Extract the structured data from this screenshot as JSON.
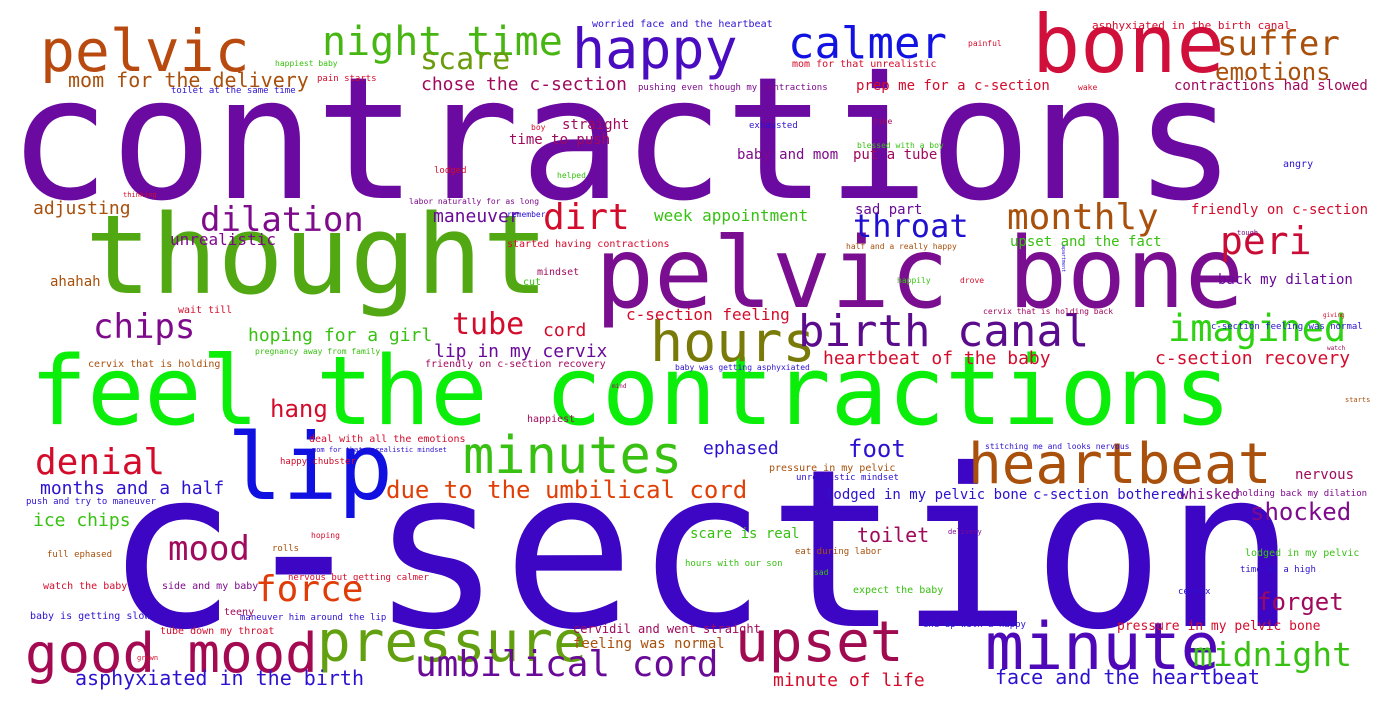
{
  "words": [
    {
      "text": "contractions",
      "color": "#6a0aa0"
    },
    {
      "text": "c-section",
      "color": "#3d06c4"
    },
    {
      "text": "feel the contractions",
      "color": "#0aee0a"
    },
    {
      "text": "thought",
      "color": "#52a812"
    },
    {
      "text": "pelvic bone",
      "color": "#7a0e90"
    },
    {
      "text": "bone",
      "color": "#d0103a"
    },
    {
      "text": "happy",
      "color": "#4a0cc0"
    },
    {
      "text": "pelvic",
      "color": "#b84a10"
    },
    {
      "text": "lip",
      "color": "#1010e0"
    },
    {
      "text": "heartbeat",
      "color": "#a8500c"
    },
    {
      "text": "minute",
      "color": "#4e08b8"
    },
    {
      "text": "upset",
      "color": "#a00a50"
    },
    {
      "text": "pressure",
      "color": "#62a010"
    },
    {
      "text": "good mood",
      "color": "#a40a52"
    },
    {
      "text": "minutes",
      "color": "#38c012"
    },
    {
      "text": "hours",
      "color": "#7a7a08"
    },
    {
      "text": "birth canal",
      "color": "#5a0c8c"
    },
    {
      "text": "calmer",
      "color": "#1212e2"
    },
    {
      "text": "night time",
      "color": "#48b612"
    },
    {
      "text": "suffer",
      "color": "#a8500c"
    },
    {
      "text": "imagined",
      "color": "#2ed212"
    },
    {
      "text": "peri",
      "color": "#c80c36"
    },
    {
      "text": "monthly",
      "color": "#a8500c"
    },
    {
      "text": "dirt",
      "color": "#d40c2c"
    },
    {
      "text": "throat",
      "color": "#2010d0"
    },
    {
      "text": "dilation",
      "color": "#7e0a8c"
    },
    {
      "text": "chips",
      "color": "#7e0a8c"
    },
    {
      "text": "mood",
      "color": "#a00a5c"
    },
    {
      "text": "force",
      "color": "#e03c08"
    },
    {
      "text": "denial",
      "color": "#d40c2c"
    },
    {
      "text": "umbilical cord",
      "color": "#6a0a98"
    },
    {
      "text": "scare",
      "color": "#6a9c0c"
    },
    {
      "text": "emotions",
      "color": "#a8500c"
    },
    {
      "text": "midnight",
      "color": "#38c012"
    },
    {
      "text": "tube",
      "color": "#d40c2c"
    },
    {
      "text": "shocked",
      "color": "#7e0a8c"
    },
    {
      "text": "forget",
      "color": "#a00a5c"
    },
    {
      "text": "due to the umbilical cord",
      "color": "#e04008"
    },
    {
      "text": "foot",
      "color": "#2c12d0"
    },
    {
      "text": "hang",
      "color": "#d40c2c"
    },
    {
      "text": "toilet",
      "color": "#a00a5c"
    },
    {
      "text": "mom for the delivery",
      "color": "#a8500c"
    },
    {
      "text": "chose the c-section",
      "color": "#a00a5c"
    },
    {
      "text": "face and the heartbeat",
      "color": "#2c12d0"
    },
    {
      "text": "asphyxiated in the birth",
      "color": "#2c12d0"
    },
    {
      "text": "c-section recovery",
      "color": "#d40c2c"
    },
    {
      "text": "ephased",
      "color": "#2c12d0"
    },
    {
      "text": "months and a half",
      "color": "#2c12d0"
    },
    {
      "text": "ice chips",
      "color": "#38c012"
    },
    {
      "text": "hoping for a girl",
      "color": "#38c012"
    },
    {
      "text": "lip in my cervix",
      "color": "#6a0a98"
    },
    {
      "text": "heartbeat of the baby",
      "color": "#d40c2c"
    },
    {
      "text": "adjusting",
      "color": "#a8500c"
    },
    {
      "text": "maneuver",
      "color": "#6a0a98"
    },
    {
      "text": "week appointment",
      "color": "#38c012"
    },
    {
      "text": "c-section feeling",
      "color": "#d40c2c"
    },
    {
      "text": "cord",
      "color": "#d40c2c"
    },
    {
      "text": "minute of life",
      "color": "#d40c2c"
    },
    {
      "text": "unrealistic",
      "color": "#7e0a8c"
    },
    {
      "text": "prep me for a c-section",
      "color": "#d40c2c"
    },
    {
      "text": "contractions had slowed",
      "color": "#a00a5c"
    },
    {
      "text": "friendly on c-section",
      "color": "#d40c2c"
    },
    {
      "text": "upset and the fact",
      "color": "#38c012"
    },
    {
      "text": "back my dilation",
      "color": "#6a0a98"
    },
    {
      "text": "baby and mom",
      "color": "#7e0a8c"
    },
    {
      "text": "put a tube",
      "color": "#a00a5c"
    },
    {
      "text": "straight",
      "color": "#a00a5c"
    },
    {
      "text": "time to push",
      "color": "#a00a5c"
    },
    {
      "text": "lodged in my pelvic bone",
      "color": "#2c12d0"
    },
    {
      "text": "c-section bothered",
      "color": "#2c12d0"
    },
    {
      "text": "whisked",
      "color": "#7e0a8c"
    },
    {
      "text": "nervous",
      "color": "#a00a5c"
    },
    {
      "text": "scare is real",
      "color": "#38c012"
    },
    {
      "text": "feeling was normal",
      "color": "#a8500c"
    },
    {
      "text": "ahahah",
      "color": "#a8500c"
    },
    {
      "text": "started having contractions",
      "color": "#d40c2c"
    },
    {
      "text": "sad part",
      "color": "#6a0a98"
    },
    {
      "text": "cut",
      "color": "#38c012"
    },
    {
      "text": "mindset",
      "color": "#a00a5c"
    },
    {
      "text": "pressure in my pelvic bone",
      "color": "#d40c2c"
    },
    {
      "text": "deal with all the emotions",
      "color": "#d40c2c"
    },
    {
      "text": "happiest",
      "color": "#a00a5c"
    },
    {
      "text": "cervidil and went straight",
      "color": "#a00a5c"
    },
    {
      "text": "friendly on c-section recovery",
      "color": "#a00a5c"
    },
    {
      "text": "worried face and the heartbeat",
      "color": "#2c12d0"
    },
    {
      "text": "asphyxiated in the birth canal",
      "color": "#d40c2c"
    },
    {
      "text": "mom for that unrealistic",
      "color": "#d40c2c"
    },
    {
      "text": "pushing even though my contractions",
      "color": "#7e0a8c"
    },
    {
      "text": "toilet at the same time",
      "color": "#2c12d0"
    },
    {
      "text": "pain starts",
      "color": "#d40c2c"
    },
    {
      "text": "happiest baby",
      "color": "#38c012"
    },
    {
      "text": "painful",
      "color": "#d40c2c"
    },
    {
      "text": "wake",
      "color": "#d40c2c"
    },
    {
      "text": "exhausted",
      "color": "#2c12d0"
    },
    {
      "text": "blessed with a boy",
      "color": "#38c012"
    },
    {
      "text": "time",
      "color": "#a00a5c"
    },
    {
      "text": "boy",
      "color": "#d40c2c"
    },
    {
      "text": "lodged",
      "color": "#d40c2c"
    },
    {
      "text": "helped",
      "color": "#38c012"
    },
    {
      "text": "angry",
      "color": "#2c12d0"
    },
    {
      "text": "thinking",
      "color": "#d40c2c"
    },
    {
      "text": "labor naturally for as long",
      "color": "#7e0a8c"
    },
    {
      "text": "remember",
      "color": "#2c12d0"
    },
    {
      "text": "half and a really happy",
      "color": "#a8500c"
    },
    {
      "text": "tough",
      "color": "#7e0a8c"
    },
    {
      "text": "happily",
      "color": "#38c012"
    },
    {
      "text": "drove",
      "color": "#d40c2c"
    },
    {
      "text": "wait till",
      "color": "#d40c2c"
    },
    {
      "text": "cervix that is holding back",
      "color": "#a00a5c"
    },
    {
      "text": "c-section feeling was normal",
      "color": "#2c12d0"
    },
    {
      "text": "giving",
      "color": "#d40c2c"
    },
    {
      "text": "pregnancy away from family",
      "color": "#38c012"
    },
    {
      "text": "cervix that is holding",
      "color": "#a8500c"
    },
    {
      "text": "baby was getting asphyxiated",
      "color": "#2c12d0"
    },
    {
      "text": "mind",
      "color": "#a00a5c"
    },
    {
      "text": "starts",
      "color": "#a8500c"
    },
    {
      "text": "mom for that unrealistic mindset",
      "color": "#2c12d0"
    },
    {
      "text": "happy chubster",
      "color": "#d40c2c"
    },
    {
      "text": "pressure in my pelvic",
      "color": "#a8500c"
    },
    {
      "text": "unrealistic mindset",
      "color": "#2c12d0"
    },
    {
      "text": "stitching me and looks nervous",
      "color": "#2c12d0"
    },
    {
      "text": "holding back my dilation",
      "color": "#7e0a8c"
    },
    {
      "text": "push and try to maneuver",
      "color": "#2c12d0"
    },
    {
      "text": "full ephased",
      "color": "#a8500c"
    },
    {
      "text": "hoping",
      "color": "#d40c2c"
    },
    {
      "text": "rolls",
      "color": "#a8500c"
    },
    {
      "text": "eat during labor",
      "color": "#a8500c"
    },
    {
      "text": "hours with our son",
      "color": "#38c012"
    },
    {
      "text": "delivery",
      "color": "#7e0a8c"
    },
    {
      "text": "lodged in my pelvic",
      "color": "#38c012"
    },
    {
      "text": "time at a high",
      "color": "#2c12d0"
    },
    {
      "text": "watch the baby",
      "color": "#d40c2c"
    },
    {
      "text": "side and my baby",
      "color": "#7e0a8c"
    },
    {
      "text": "nervous but getting calmer",
      "color": "#d40c2c"
    },
    {
      "text": "sad",
      "color": "#38c012"
    },
    {
      "text": "expect the baby",
      "color": "#38c012"
    },
    {
      "text": "cervix",
      "color": "#2c12d0"
    },
    {
      "text": "baby is getting slow",
      "color": "#2c12d0"
    },
    {
      "text": "teeny",
      "color": "#a00a5c"
    },
    {
      "text": "maneuver him around the lip",
      "color": "#2c12d0"
    },
    {
      "text": "end up with a happy",
      "color": "#2c12d0"
    },
    {
      "text": "tube down my throat",
      "color": "#d40c2c"
    },
    {
      "text": "grown",
      "color": "#d40c2c"
    },
    {
      "text": "watch",
      "color": "#a00a5c"
    },
    {
      "text": "apartment",
      "color": "#2c12d0"
    }
  ]
}
